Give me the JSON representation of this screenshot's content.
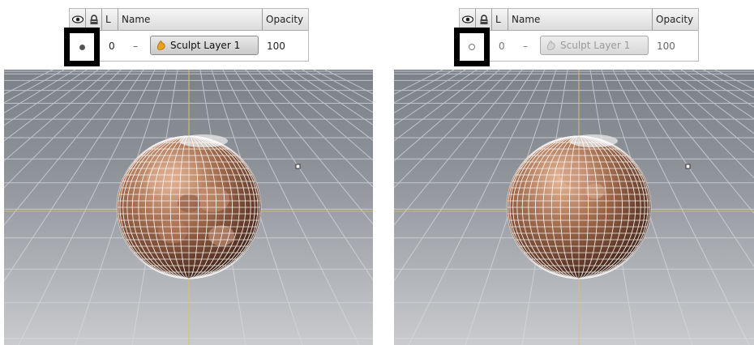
{
  "layer_panels": [
    {
      "id": "left",
      "visibility_on": true,
      "header": {
        "name": "Name",
        "opacity": "Opacity",
        "lock_col": "L"
      },
      "layer": {
        "level": "0",
        "name": "Sculpt Layer 1",
        "opacity": "100"
      }
    },
    {
      "id": "right",
      "visibility_on": false,
      "header": {
        "name": "Name",
        "opacity": "Opacity",
        "lock_col": "L"
      },
      "layer": {
        "level": "0",
        "name": "Sculpt Layer 1",
        "opacity": "100"
      }
    }
  ],
  "icons": [
    "eye-icon",
    "lock-icon",
    "sculpt-layer-icon",
    "visibility-dot-icon"
  ],
  "colors": {
    "highlight_border": "#000000",
    "viewport_top": "#7c8088",
    "viewport_bottom": "#c9cbce",
    "grid": "#d7d9dc",
    "axis": "#d8c24e",
    "sphere": "#a06a4c"
  }
}
